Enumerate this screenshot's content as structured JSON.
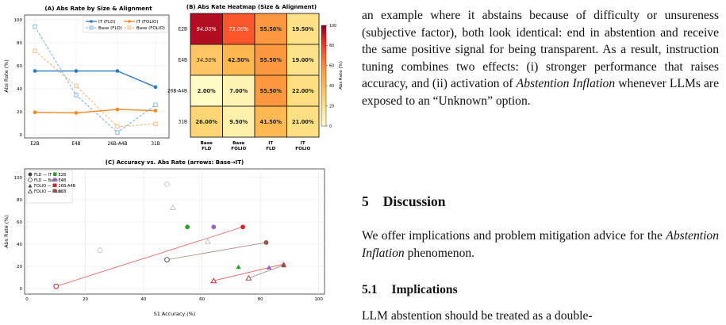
{
  "colors": {
    "blue": "#2b7bba",
    "orange": "#f28a1c",
    "fld_it": "#3a3a3a",
    "e2b": "#2ca02c",
    "e4b": "#9467bd",
    "g26": "#d62728",
    "g31": "#8c564b",
    "heat_high": "#800026",
    "heat_low": "#ffffcc"
  },
  "panel_a": {
    "title": "(A) Abs Rate by Size & Alignment",
    "ylabel": "Abs Rate (%)",
    "legend": [
      "IT (FLD)",
      "IT (FOLIO)",
      "Base (FLD)",
      "Base (FOLIO)"
    ]
  },
  "panel_b": {
    "title": "(B) Abs Rate Heatmap (Size & Alignment)",
    "rows": [
      "E2B",
      "E4B",
      "26B-A4B",
      "31B"
    ],
    "cols": [
      "Base\nFLD",
      "Base\nFOLIO",
      "IT\nFLD",
      "IT\nFOLIO"
    ],
    "cells": [
      [
        "94.00%",
        "73.00%",
        "55.50%",
        "19.50%"
      ],
      [
        "34.50%",
        "42.50%",
        "55.50%",
        "19.00%"
      ],
      [
        "2.00%",
        "7.00%",
        "55.50%",
        "22.00%"
      ],
      [
        "26.00%",
        "9.50%",
        "41.50%",
        "21.00%"
      ]
    ],
    "colorbar_label": "Abs Rate (%)",
    "colorbar_ticks": [
      "100",
      "80",
      "60",
      "40",
      "20",
      "0"
    ]
  },
  "panel_c": {
    "title": "(C) Accuracy vs. Abs Rate  (arrows: Base→IT)",
    "xlabel": "S1 Accuracy (%)",
    "ylabel": "Abs Rate (%)",
    "legend_left": [
      "FLD — IT",
      "FLD — Base",
      "FOLIO — IT",
      "FOLIO — Base"
    ],
    "legend_right": [
      "E2B",
      "E4B",
      "26B-A4B",
      "31B"
    ]
  },
  "chart_data": [
    {
      "type": "line",
      "title": "(A) Abs Rate by Size & Alignment",
      "xlabel": "",
      "ylabel": "Abs Rate (%)",
      "categories": [
        "E2B",
        "E4B",
        "26B-A4B",
        "31B"
      ],
      "ylim": [
        0,
        100
      ],
      "yticks": [
        0,
        20,
        40,
        60,
        80,
        100
      ],
      "grid": true,
      "legend_position": "top-right",
      "series": [
        {
          "name": "IT (FLD)",
          "values": [
            55.5,
            55.5,
            55.5,
            41.5
          ]
        },
        {
          "name": "IT (FOLIO)",
          "values": [
            19.5,
            19.0,
            22.0,
            21.0
          ]
        },
        {
          "name": "Base (FLD)",
          "values": [
            94.0,
            34.5,
            2.0,
            26.0
          ]
        },
        {
          "name": "Base (FOLIO)",
          "values": [
            73.0,
            42.5,
            7.0,
            9.5
          ]
        }
      ]
    },
    {
      "type": "heatmap",
      "title": "(B) Abs Rate Heatmap (Size & Alignment)",
      "rows": [
        "E2B",
        "E4B",
        "26B-A4B",
        "31B"
      ],
      "columns": [
        "Base FLD",
        "Base FOLIO",
        "IT FLD",
        "IT FOLIO"
      ],
      "values": [
        [
          94.0,
          73.0,
          55.5,
          19.5
        ],
        [
          34.5,
          42.5,
          55.5,
          19.0
        ],
        [
          2.0,
          7.0,
          55.5,
          22.0
        ],
        [
          26.0,
          9.5,
          41.5,
          21.0
        ]
      ],
      "colorbar_range": [
        0,
        100
      ]
    },
    {
      "type": "scatter",
      "title": "(C) Accuracy vs. Abs Rate  (arrows: Base→IT)",
      "xlabel": "S1 Accuracy (%)",
      "ylabel": "Abs Rate (%)",
      "xlim": [
        0,
        102
      ],
      "ylim": [
        0,
        100
      ],
      "xticks": [
        0,
        20,
        40,
        60,
        80,
        100
      ],
      "yticks": [
        0,
        20,
        40,
        60,
        80,
        100
      ],
      "grid": true,
      "legend_position": "top-left",
      "points": [
        {
          "model": "E2B",
          "dataset": "FLD",
          "align": "IT",
          "x": 55,
          "y": 55.5
        },
        {
          "model": "E4B",
          "dataset": "FLD",
          "align": "IT",
          "x": 64,
          "y": 55.5
        },
        {
          "model": "26B-A4B",
          "dataset": "FLD",
          "align": "IT",
          "x": 74,
          "y": 55.5
        },
        {
          "model": "31B",
          "dataset": "FLD",
          "align": "IT",
          "x": 82,
          "y": 41.5
        },
        {
          "model": "E2B",
          "dataset": "FLD",
          "align": "Base",
          "x": 48,
          "y": 94.0
        },
        {
          "model": "E4B",
          "dataset": "FLD",
          "align": "Base",
          "x": 25,
          "y": 34.5
        },
        {
          "model": "26B-A4B",
          "dataset": "FLD",
          "align": "Base",
          "x": 10,
          "y": 2.0
        },
        {
          "model": "31B",
          "dataset": "FLD",
          "align": "Base",
          "x": 48,
          "y": 26.0
        },
        {
          "model": "E2B",
          "dataset": "FOLIO",
          "align": "IT",
          "x": 72.5,
          "y": 19.5
        },
        {
          "model": "E4B",
          "dataset": "FOLIO",
          "align": "IT",
          "x": 83,
          "y": 19.0
        },
        {
          "model": "26B-A4B",
          "dataset": "FOLIO",
          "align": "IT",
          "x": 88,
          "y": 22.0
        },
        {
          "model": "31B",
          "dataset": "FOLIO",
          "align": "IT",
          "x": 88,
          "y": 21.0
        },
        {
          "model": "E2B",
          "dataset": "FOLIO",
          "align": "Base",
          "x": 50,
          "y": 73.0
        },
        {
          "model": "E4B",
          "dataset": "FOLIO",
          "align": "Base",
          "x": 62,
          "y": 42.5
        },
        {
          "model": "26B-A4B",
          "dataset": "FOLIO",
          "align": "Base",
          "x": 64,
          "y": 7.0
        },
        {
          "model": "31B",
          "dataset": "FOLIO",
          "align": "Base",
          "x": 76,
          "y": 9.5
        }
      ]
    }
  ],
  "text": {
    "para1_a": "an example where it abstains because of difficulty or unsureness (subjective factor), both look identical: end in abstention and receive the same positive signal for being transparent. As a result, instruction tuning combines two effects: (i) stronger performance that raises accuracy, and (ii) activation of ",
    "para1_em": "Abstention Inflation",
    "para1_b": " whenever LLMs are exposed to an “Unknown” option.",
    "sec5_num": "5",
    "sec5_title": "Discussion",
    "para2_a": "We offer implications and problem mitigation advice for the ",
    "para2_em": "Abstention Inflation",
    "para2_b": " phenomenon.",
    "sec51_num": "5.1",
    "sec51_title": "Implications",
    "para3": "LLM abstention should be treated as a double-"
  }
}
